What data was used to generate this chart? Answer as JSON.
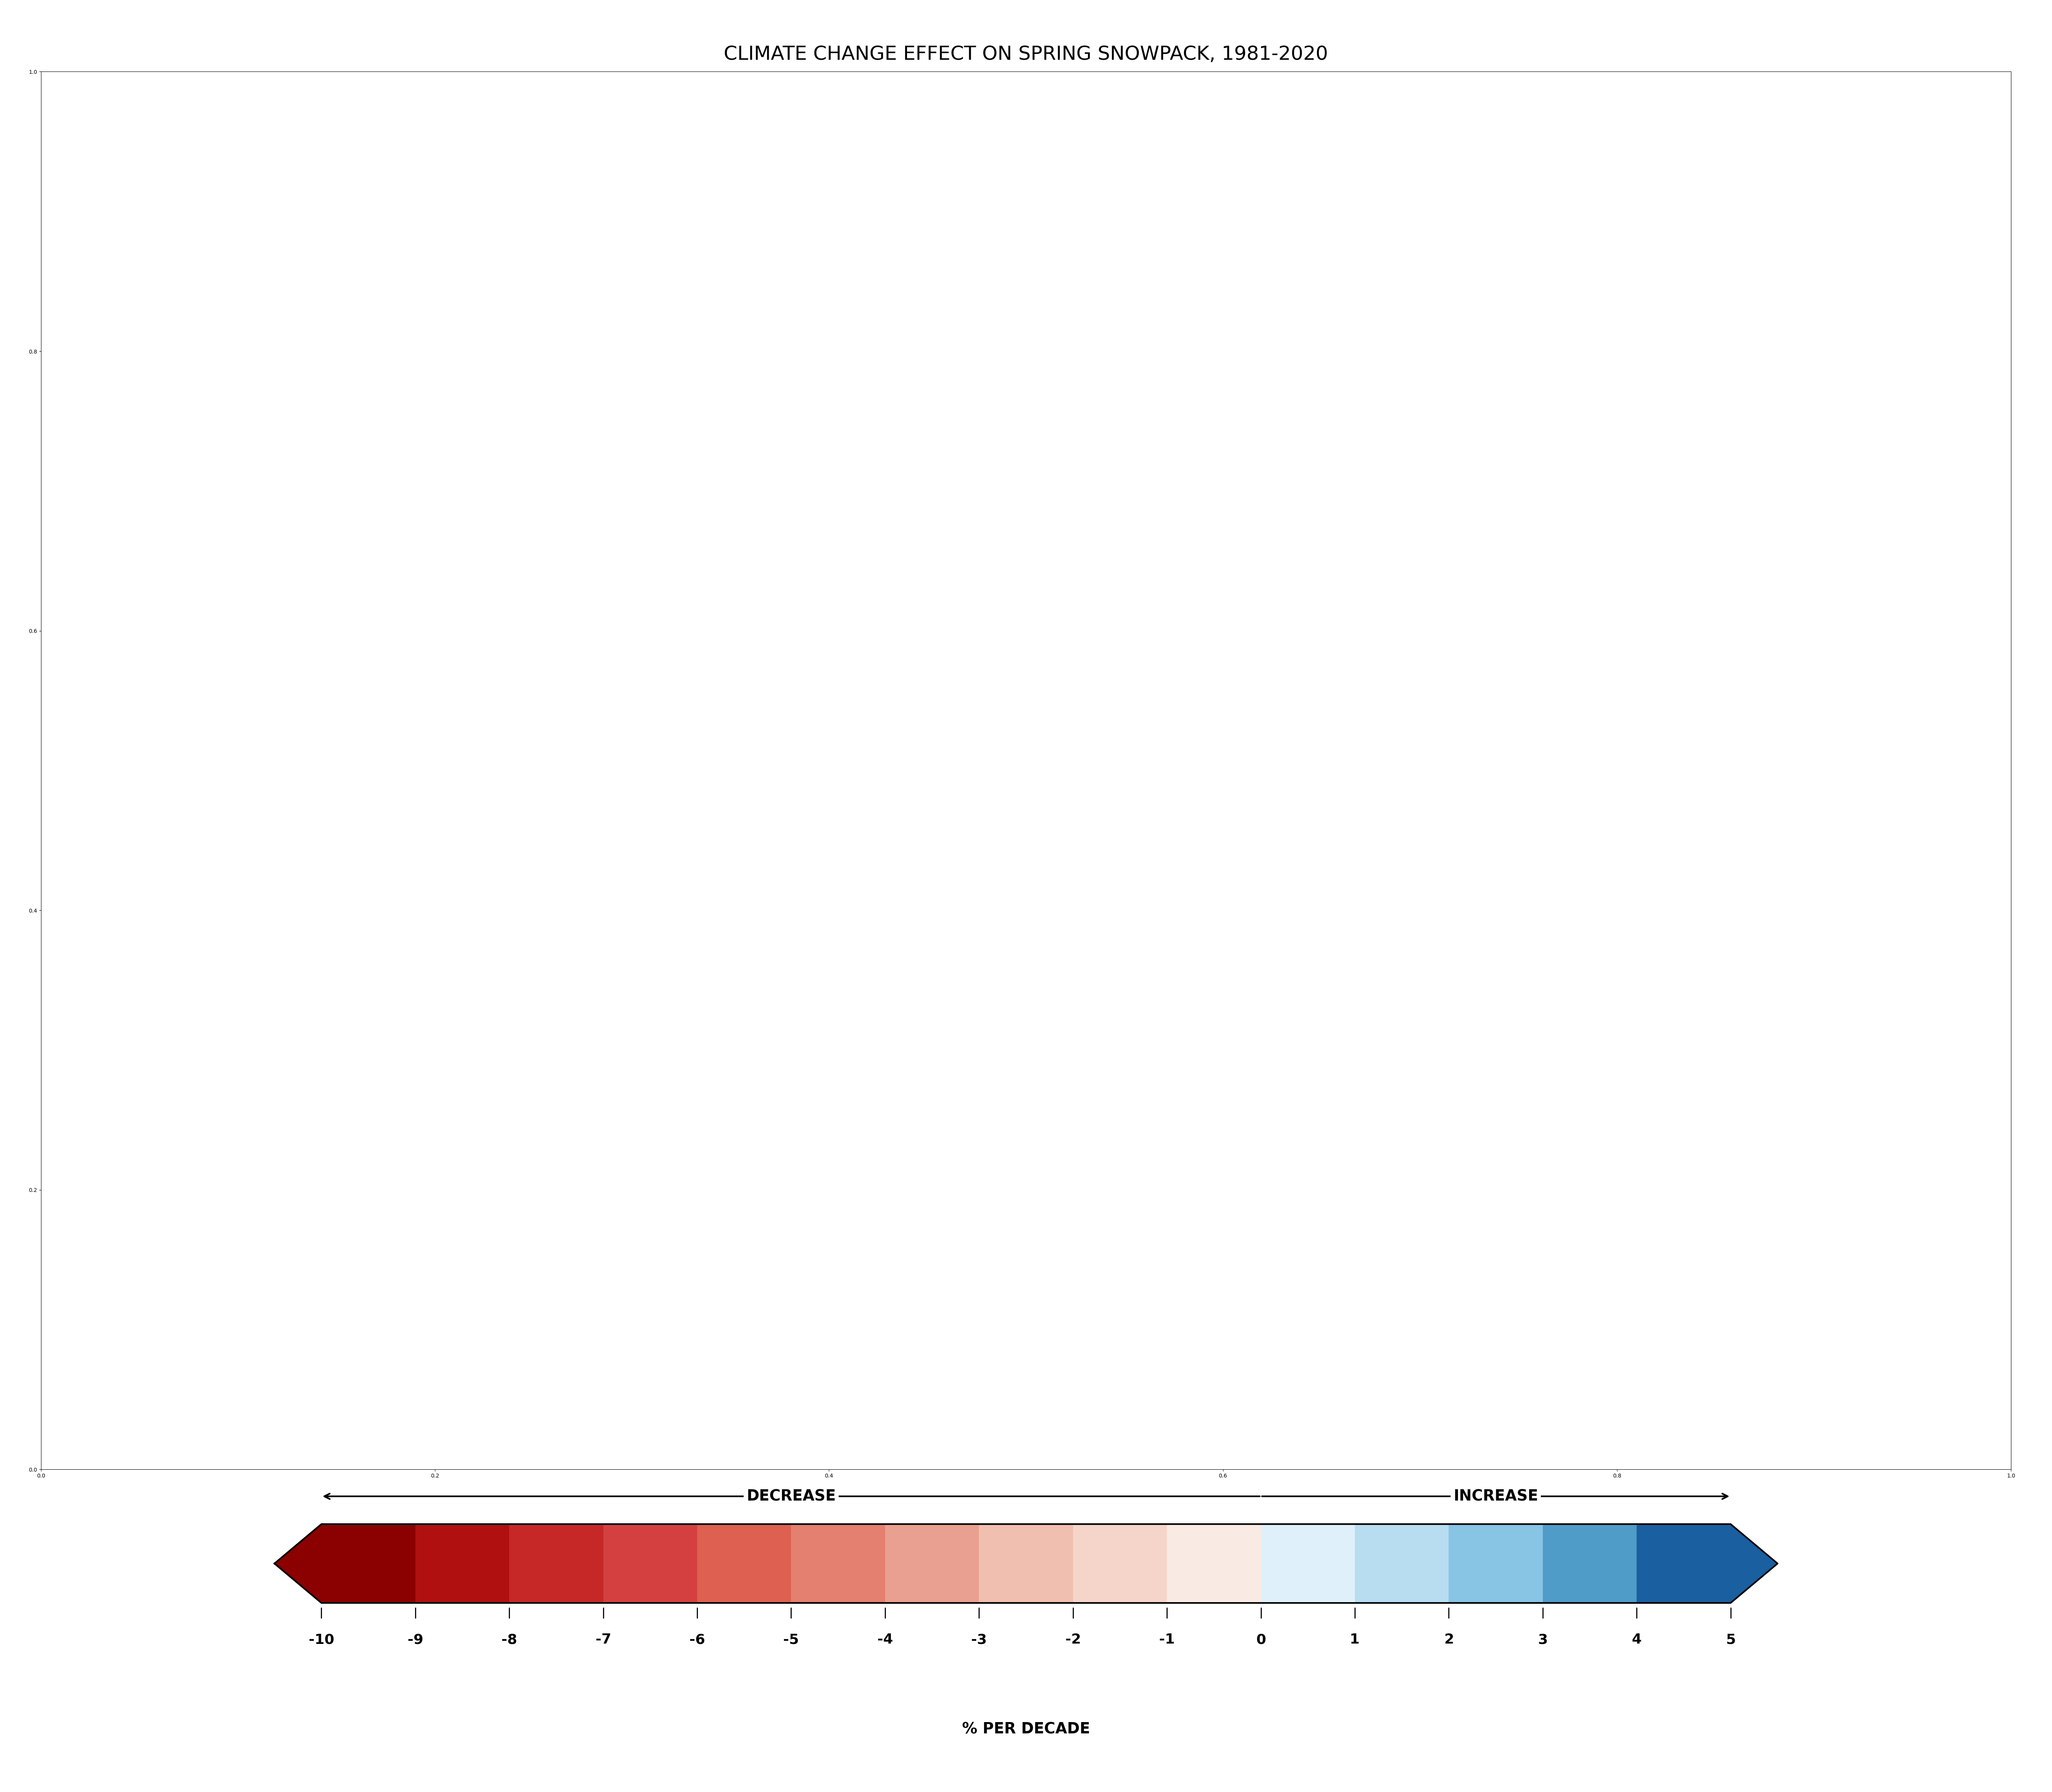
{
  "title": "CLIMATE CHANGE EFFECT ON SPRING SNOWPACK, 1981-2020",
  "colorbar_label": "% PER DECADE",
  "decrease_label": "DECREASE",
  "increase_label": "INCREASE",
  "vmin": -10,
  "vmax": 5,
  "tick_values": [
    -10,
    -9,
    -8,
    -7,
    -6,
    -5,
    -4,
    -3,
    -2,
    -1,
    0,
    1,
    2,
    3,
    4,
    5
  ],
  "title_fontsize": 36,
  "label_fontsize": 28,
  "tick_fontsize": 26,
  "background_color": "#ffffff",
  "ocean_color": "#ffffff",
  "no_data_color": "#b0b0b0",
  "border_color": "#1a1a1a",
  "colorbar_colors_neg": [
    "#8b0000",
    "#b22020",
    "#c83030",
    "#d45050",
    "#dd7060",
    "#e49080",
    "#ebb0a0",
    "#f0c8b8",
    "#f5ddd0",
    "#faeae4"
  ],
  "colorbar_colors_pos": [
    "#e8f4fb",
    "#c5e0f0",
    "#9fcde4",
    "#6ab5d8",
    "#3a90c0",
    "#1a5fa0"
  ]
}
